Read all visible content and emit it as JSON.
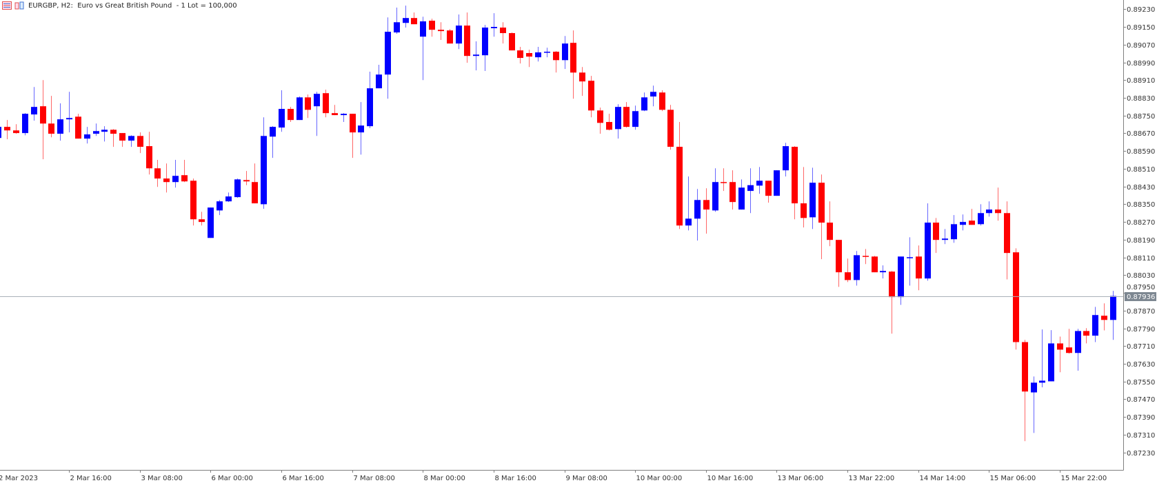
{
  "header": {
    "title": "EURGBP, H2:  Euro vs Great British Pound  - 1 Lot = 100,000",
    "icons": [
      "chart-list-icon",
      "chart-type-icon"
    ]
  },
  "colors": {
    "bull": "#0000ff",
    "bear": "#ff0000",
    "price_line": "#a9b0b8",
    "price_tag_bg": "#7d8791",
    "axis": "#7f7f7f"
  },
  "chart_data": {
    "type": "candlestick",
    "symbol": "EURGBP",
    "timeframe": "H2",
    "ylim": [
      0.8719,
      0.8927
    ],
    "grid": false,
    "y_ticks": [
      "0.89230",
      "0.89150",
      "0.89070",
      "0.88990",
      "0.88910",
      "0.88830",
      "0.88750",
      "0.88670",
      "0.88590",
      "0.88510",
      "0.88430",
      "0.88350",
      "0.88270",
      "0.88190",
      "0.88110",
      "0.88030",
      "0.87950",
      "0.87870",
      "0.87790",
      "0.87710",
      "0.87630",
      "0.87550",
      "0.87470",
      "0.87390",
      "0.87310",
      "0.87230"
    ],
    "x_ticks": [
      "2 Mar 2023",
      "2 Mar 16:00",
      "3 Mar 08:00",
      "6 Mar 00:00",
      "6 Mar 16:00",
      "7 Mar 08:00",
      "8 Mar 00:00",
      "8 Mar 16:00",
      "9 Mar 08:00",
      "10 Mar 00:00",
      "10 Mar 16:00",
      "13 Mar 06:00",
      "13 Mar 22:00",
      "14 Mar 14:00",
      "15 Mar 06:00",
      "15 Mar 22:00"
    ],
    "x_tick_every_bars": 8,
    "current_price": "0.87936",
    "ohlc_columns": [
      "open",
      "high",
      "low",
      "close"
    ],
    "candles": [
      [
        0.88649,
        0.88711,
        0.8864,
        0.88699
      ],
      [
        0.88699,
        0.8873,
        0.88643,
        0.88683
      ],
      [
        0.88683,
        0.88711,
        0.88668,
        0.88671
      ],
      [
        0.88671,
        0.88761,
        0.88661,
        0.88758
      ],
      [
        0.88755,
        0.88879,
        0.88727,
        0.88789
      ],
      [
        0.88792,
        0.8891,
        0.88553,
        0.88714
      ],
      [
        0.88714,
        0.88839,
        0.88652,
        0.88668
      ],
      [
        0.88668,
        0.88805,
        0.88637,
        0.88733
      ],
      [
        0.88733,
        0.88857,
        0.88674,
        0.88739
      ],
      [
        0.88745,
        0.88758,
        0.88646,
        0.88646
      ],
      [
        0.88646,
        0.88699,
        0.88624,
        0.88665
      ],
      [
        0.88668,
        0.88714,
        0.88658,
        0.8868
      ],
      [
        0.88677,
        0.88702,
        0.88633,
        0.88686
      ],
      [
        0.88686,
        0.88689,
        0.88609,
        0.88668
      ],
      [
        0.88671,
        0.88671,
        0.88609,
        0.88637
      ],
      [
        0.88637,
        0.88661,
        0.88609,
        0.88658
      ],
      [
        0.88658,
        0.88674,
        0.88581,
        0.88609
      ],
      [
        0.88612,
        0.88677,
        0.88484,
        0.88512
      ],
      [
        0.88512,
        0.8855,
        0.88428,
        0.88466
      ],
      [
        0.88466,
        0.88534,
        0.88403,
        0.8845
      ],
      [
        0.8845,
        0.8855,
        0.88425,
        0.88478
      ],
      [
        0.88481,
        0.8855,
        0.8845,
        0.88453
      ],
      [
        0.88456,
        0.88466,
        0.88254,
        0.88282
      ],
      [
        0.88282,
        0.88316,
        0.88254,
        0.8827
      ],
      [
        0.88198,
        0.88335,
        0.88198,
        0.88335
      ],
      [
        0.88322,
        0.88369,
        0.88301,
        0.88363
      ],
      [
        0.88363,
        0.88403,
        0.8836,
        0.88385
      ],
      [
        0.88382,
        0.88466,
        0.88379,
        0.88462
      ],
      [
        0.88459,
        0.885,
        0.88436,
        0.88453
      ],
      [
        0.8845,
        0.88534,
        0.88354,
        0.88354
      ],
      [
        0.8835,
        0.88742,
        0.88329,
        0.88658
      ],
      [
        0.88655,
        0.88702,
        0.88559,
        0.88699
      ],
      [
        0.88696,
        0.88864,
        0.88677,
        0.8878
      ],
      [
        0.8878,
        0.88789,
        0.88721,
        0.8873
      ],
      [
        0.8873,
        0.88836,
        0.8873,
        0.88832
      ],
      [
        0.88832,
        0.88845,
        0.88739,
        0.88776
      ],
      [
        0.88792,
        0.88857,
        0.88658,
        0.88848
      ],
      [
        0.88851,
        0.88867,
        0.88742,
        0.88761
      ],
      [
        0.88761,
        0.88798,
        0.88752,
        0.88752
      ],
      [
        0.88752,
        0.88761,
        0.88721,
        0.88758
      ],
      [
        0.88758,
        0.88758,
        0.88559,
        0.88674
      ],
      [
        0.88674,
        0.88811,
        0.88574,
        0.88705
      ],
      [
        0.88702,
        0.88948,
        0.88693,
        0.88873
      ],
      [
        0.88873,
        0.88979,
        0.88873,
        0.88935
      ],
      [
        0.88935,
        0.89193,
        0.88826,
        0.89128
      ],
      [
        0.89125,
        0.89237,
        0.89119,
        0.89171
      ],
      [
        0.89168,
        0.89246,
        0.89147,
        0.8919
      ],
      [
        0.8919,
        0.89215,
        0.89162,
        0.89162
      ],
      [
        0.89106,
        0.89196,
        0.8891,
        0.89175
      ],
      [
        0.89178,
        0.89187,
        0.89106,
        0.89137
      ],
      [
        0.89137,
        0.89171,
        0.89091,
        0.89131
      ],
      [
        0.89134,
        0.8914,
        0.89075,
        0.89075
      ],
      [
        0.89075,
        0.89206,
        0.8905,
        0.89156
      ],
      [
        0.89156,
        0.89215,
        0.88988,
        0.89019
      ],
      [
        0.89019,
        0.89085,
        0.88954,
        0.89025
      ],
      [
        0.89022,
        0.89159,
        0.88951,
        0.89147
      ],
      [
        0.89144,
        0.89212,
        0.89106,
        0.8915
      ],
      [
        0.89147,
        0.89171,
        0.89075,
        0.89122
      ],
      [
        0.89122,
        0.89125,
        0.89044,
        0.89044
      ],
      [
        0.89044,
        0.8906,
        0.88985,
        0.8901
      ],
      [
        0.89032,
        0.89047,
        0.88969,
        0.89016
      ],
      [
        0.89013,
        0.8906,
        0.88994,
        0.89035
      ],
      [
        0.89035,
        0.89056,
        0.89013,
        0.89038
      ],
      [
        0.89038,
        0.89041,
        0.88944,
        0.89
      ],
      [
        0.89,
        0.89109,
        0.8896,
        0.89075
      ],
      [
        0.89078,
        0.89134,
        0.88826,
        0.88944
      ],
      [
        0.88944,
        0.88969,
        0.88839,
        0.88904
      ],
      [
        0.88907,
        0.88929,
        0.88742,
        0.88773
      ],
      [
        0.88773,
        0.88786,
        0.88668,
        0.88717
      ],
      [
        0.88721,
        0.88758,
        0.88683,
        0.88686
      ],
      [
        0.88689,
        0.88801,
        0.88646,
        0.88789
      ],
      [
        0.88789,
        0.88811,
        0.88696,
        0.88699
      ],
      [
        0.88699,
        0.88795,
        0.88686,
        0.8877
      ],
      [
        0.88773,
        0.88854,
        0.8877,
        0.88832
      ],
      [
        0.88836,
        0.88885,
        0.88792,
        0.88857
      ],
      [
        0.88854,
        0.88864,
        0.8877,
        0.88776
      ],
      [
        0.88776,
        0.88798,
        0.88596,
        0.88609
      ],
      [
        0.88609,
        0.88721,
        0.88238,
        0.88254
      ],
      [
        0.88254,
        0.88475,
        0.88232,
        0.88285
      ],
      [
        0.88285,
        0.88419,
        0.88186,
        0.88369
      ],
      [
        0.88369,
        0.88422,
        0.88217,
        0.88326
      ],
      [
        0.88322,
        0.88512,
        0.88316,
        0.8845
      ],
      [
        0.8845,
        0.88512,
        0.8841,
        0.88447
      ],
      [
        0.8845,
        0.88503,
        0.88326,
        0.8836
      ],
      [
        0.88326,
        0.88462,
        0.88326,
        0.88425
      ],
      [
        0.8841,
        0.88512,
        0.8831,
        0.88436
      ],
      [
        0.88434,
        0.88518,
        0.88397,
        0.88456
      ],
      [
        0.88456,
        0.88456,
        0.88357,
        0.88388
      ],
      [
        0.88388,
        0.88503,
        0.88388,
        0.88503
      ],
      [
        0.88503,
        0.88627,
        0.88475,
        0.88612
      ],
      [
        0.88609,
        0.88612,
        0.88282,
        0.88354
      ],
      [
        0.88354,
        0.88518,
        0.88245,
        0.88288
      ],
      [
        0.88291,
        0.88515,
        0.88238,
        0.88447
      ],
      [
        0.88447,
        0.88484,
        0.88102,
        0.88267
      ],
      [
        0.88267,
        0.88363,
        0.88161,
        0.88189
      ],
      [
        0.88189,
        0.88189,
        0.87977,
        0.88043
      ],
      [
        0.88043,
        0.88105,
        0.87999,
        0.88008
      ],
      [
        0.88008,
        0.88139,
        0.87983,
        0.8812
      ],
      [
        0.88117,
        0.88148,
        0.8808,
        0.88114
      ],
      [
        0.88114,
        0.88117,
        0.88043,
        0.88043
      ],
      [
        0.88043,
        0.88074,
        0.88015,
        0.88049
      ],
      [
        0.88046,
        0.88049,
        0.87766,
        0.87931
      ],
      [
        0.87931,
        0.88114,
        0.87896,
        0.88114
      ],
      [
        0.88108,
        0.88201,
        0.87983,
        0.88111
      ],
      [
        0.88114,
        0.88164,
        0.87962,
        0.88015
      ],
      [
        0.88015,
        0.88354,
        0.88005,
        0.88267
      ],
      [
        0.88267,
        0.88288,
        0.8813,
        0.88189
      ],
      [
        0.88189,
        0.88238,
        0.8817,
        0.88195
      ],
      [
        0.88192,
        0.88301,
        0.88176,
        0.8826
      ],
      [
        0.88257,
        0.88304,
        0.88232,
        0.8827
      ],
      [
        0.88276,
        0.88329,
        0.88257,
        0.88257
      ],
      [
        0.8826,
        0.8835,
        0.88254,
        0.8831
      ],
      [
        0.8831,
        0.88363,
        0.88294,
        0.88326
      ],
      [
        0.88326,
        0.88425,
        0.88276,
        0.8831
      ],
      [
        0.8831,
        0.88363,
        0.88011,
        0.8813
      ],
      [
        0.88133,
        0.88151,
        0.87694,
        0.87728
      ],
      [
        0.87728,
        0.87738,
        0.87281,
        0.87505
      ],
      [
        0.87501,
        0.87573,
        0.87318,
        0.87545
      ],
      [
        0.87545,
        0.87785,
        0.87524,
        0.87554
      ],
      [
        0.87551,
        0.87782,
        0.87551,
        0.87722
      ],
      [
        0.87722,
        0.87753,
        0.87592,
        0.87694
      ],
      [
        0.87704,
        0.87788,
        0.87676,
        0.87679
      ],
      [
        0.87679,
        0.87788,
        0.87599,
        0.87778
      ],
      [
        0.87778,
        0.87791,
        0.87722,
        0.87757
      ],
      [
        0.87757,
        0.87887,
        0.87728,
        0.8785
      ],
      [
        0.87847,
        0.87903,
        0.87781,
        0.87828
      ],
      [
        0.87828,
        0.87959,
        0.87738,
        0.87936
      ]
    ]
  }
}
